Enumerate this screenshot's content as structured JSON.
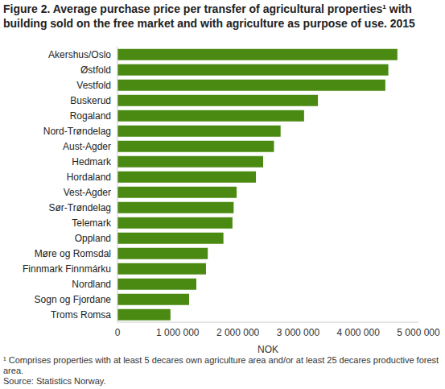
{
  "chart_data": {
    "type": "bar",
    "orientation": "horizontal",
    "title": "Figure 2. Average purchase price per transfer of agricultural properties¹ with building sold on the free market and with agriculture as purpose of use. 2015",
    "categories": [
      "Akershus/Oslo",
      "Østfold",
      "Vestfold",
      "Buskerud",
      "Rogaland",
      "Nord-Trøndelag",
      "Aust-Agder",
      "Hedmark",
      "Hordaland",
      "Vest-Agder",
      "Sør-Trøndelag",
      "Telemark",
      "Oppland",
      "Møre og Romsdal",
      "Finnmark Finnmárku",
      "Nordland",
      "Sogn og Fjordane",
      "Troms Romsa"
    ],
    "values": [
      4650000,
      4500000,
      4450000,
      3330000,
      3100000,
      2710000,
      2600000,
      2420000,
      2300000,
      1980000,
      1930000,
      1910000,
      1760000,
      1500000,
      1470000,
      1310000,
      1190000,
      880000
    ],
    "color": "#4b8a12",
    "xlim": [
      0,
      5000000
    ],
    "xticks": [
      0,
      {
        "value": 1000000,
        "label": "1 000 000"
      },
      {
        "value": 2000000,
        "label": "2 000 000"
      },
      {
        "value": 3000000,
        "label": "3 000 000"
      },
      {
        "value": 4000000,
        "label": "4 000 000"
      },
      {
        "value": 5000000,
        "label": "5 000 000"
      }
    ],
    "x_label": "NOK",
    "grid": false,
    "footnote": "¹ Comprises properties with at least 5 decares own agriculture area and/or at least 25 decares productive forest area.",
    "source": "Source: Statistics Norway."
  }
}
